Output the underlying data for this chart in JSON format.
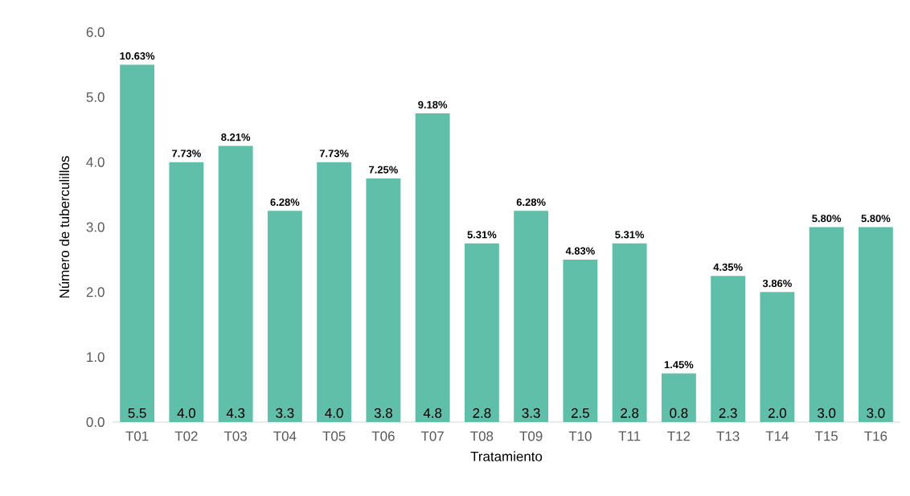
{
  "chart_data": {
    "type": "bar",
    "xlabel": "Tratamiento",
    "ylabel": "Número de tuberculillos",
    "categories": [
      "T01",
      "T02",
      "T03",
      "T04",
      "T05",
      "T06",
      "T07",
      "T08",
      "T09",
      "T10",
      "T11",
      "T12",
      "T13",
      "T14",
      "T15",
      "T16"
    ],
    "values": [
      5.5,
      4.0,
      4.25,
      3.25,
      4.0,
      3.75,
      4.75,
      2.75,
      3.25,
      2.5,
      2.75,
      0.75,
      2.25,
      2.0,
      3.0,
      3.0
    ],
    "value_labels": [
      "5.5",
      "4.0",
      "4.3",
      "3.3",
      "4.0",
      "3.8",
      "4.8",
      "2.8",
      "3.3",
      "2.5",
      "2.8",
      "0.8",
      "2.3",
      "2.0",
      "3.0",
      "3.0"
    ],
    "color": "#5fbfa8",
    "ylim": [
      0,
      6
    ],
    "yticks": [
      {
        "value": 0,
        "label": "0.0"
      },
      {
        "value": 1,
        "label": "1.0"
      },
      {
        "value": 2,
        "label": "2.0"
      },
      {
        "value": 3,
        "label": "3.0"
      },
      {
        "value": 4,
        "label": "4.0"
      },
      {
        "value": 5,
        "label": "5.0"
      },
      {
        "value": 6,
        "label": "6.0"
      }
    ],
    "grid": false,
    "annotations": [
      {
        "text": "10.63%",
        "x": "T01",
        "y": 5.5
      },
      {
        "text": "7.73%",
        "x": "T02",
        "y": 4.0
      },
      {
        "text": "8.21%",
        "x": "T03",
        "y": 4.25
      },
      {
        "text": "6.28%",
        "x": "T04",
        "y": 3.25
      },
      {
        "text": "7.73%",
        "x": "T05",
        "y": 4.0
      },
      {
        "text": "7.25%",
        "x": "T06",
        "y": 3.75
      },
      {
        "text": "9.18%",
        "x": "T07",
        "y": 4.75
      },
      {
        "text": "5.31%",
        "x": "T08",
        "y": 2.75
      },
      {
        "text": "6.28%",
        "x": "T09",
        "y": 3.25
      },
      {
        "text": "4.83%",
        "x": "T10",
        "y": 2.5
      },
      {
        "text": "5.31%",
        "x": "T11",
        "y": 2.75
      },
      {
        "text": "1.45%",
        "x": "T12",
        "y": 0.75
      },
      {
        "text": "4.35%",
        "x": "T13",
        "y": 2.25
      },
      {
        "text": "3.86%",
        "x": "T14",
        "y": 2.0
      },
      {
        "text": "5.80%",
        "x": "T15",
        "y": 3.0
      },
      {
        "text": "5.80%",
        "x": "T16",
        "y": 3.0
      }
    ]
  }
}
